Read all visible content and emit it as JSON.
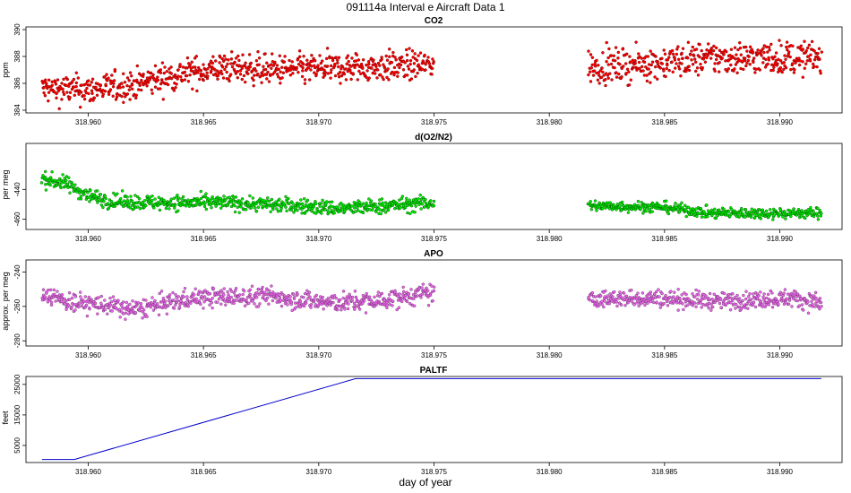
{
  "figure": {
    "title": "091114a   Interval e Aircraft Data 1",
    "xlabel": "day of year"
  },
  "chart_data": [
    {
      "type": "scatter",
      "title": "CO2",
      "ylabel": "ppm",
      "color": "#ff0000",
      "edge_color": "#7a0000",
      "xlim": [
        318.9573,
        318.9927
      ],
      "ylim": [
        383.8,
        390.2
      ],
      "yticks": [
        384,
        386,
        388,
        390
      ],
      "xticks": [
        318.96,
        318.965,
        318.97,
        318.975,
        318.98,
        318.985,
        318.99
      ],
      "xtick_labels": [
        "318.960",
        "318.965",
        "318.970",
        "318.975",
        "318.980",
        "318.985",
        "318.990"
      ],
      "segments": [
        {
          "x_start": 318.958,
          "x_end": 318.975,
          "trend_x": [
            318.958,
            318.96,
            318.962,
            318.964,
            318.966,
            318.968,
            318.97,
            318.972,
            318.975
          ],
          "trend_y": [
            385.6,
            385.5,
            385.9,
            386.7,
            387.2,
            387.0,
            387.1,
            387.2,
            387.4
          ],
          "noise": 0.55
        },
        {
          "x_start": 318.9817,
          "x_end": 318.9918,
          "trend_x": [
            318.9817,
            318.984,
            318.987,
            318.9918
          ],
          "trend_y": [
            387.2,
            387.4,
            387.9,
            387.9
          ],
          "noise": 0.6
        }
      ]
    },
    {
      "type": "scatter",
      "title": "d(O2/N2)",
      "ylabel": "per meg",
      "color": "#00ee00",
      "edge_color": "#005500",
      "xlim": [
        318.9573,
        318.9927
      ],
      "ylim": [
        -467,
        -409
      ],
      "yticks": [
        -440,
        -460
      ],
      "ytick_labels": [
        "-440",
        "-460"
      ],
      "xticks": [
        318.96,
        318.965,
        318.97,
        318.975,
        318.98,
        318.985,
        318.99
      ],
      "xtick_labels": [
        "318.960",
        "318.965",
        "318.970",
        "318.975",
        "318.980",
        "318.985",
        "318.990"
      ],
      "segments": [
        {
          "x_start": 318.958,
          "x_end": 318.975,
          "trend_x": [
            318.958,
            318.959,
            318.96,
            318.961,
            318.963,
            318.966,
            318.969,
            318.971,
            318.975
          ],
          "trend_y": [
            -433,
            -436,
            -444,
            -448,
            -449,
            -449,
            -451,
            -453,
            -449
          ],
          "noise": 2.5
        },
        {
          "x_start": 318.9817,
          "x_end": 318.9918,
          "trend_x": [
            318.9817,
            318.985,
            318.987,
            318.9918
          ],
          "trend_y": [
            -451,
            -452,
            -456,
            -456
          ],
          "noise": 1.8
        }
      ]
    },
    {
      "type": "scatter",
      "title": "APO",
      "ylabel": "approx. per meg",
      "color": "#ee66ee",
      "edge_color": "#663366",
      "xlim": [
        318.9573,
        318.9927
      ],
      "ylim": [
        -283,
        -233
      ],
      "yticks": [
        -240,
        -260,
        -280
      ],
      "ytick_labels": [
        "-240",
        "-260",
        "-280"
      ],
      "xticks": [
        318.96,
        318.965,
        318.97,
        318.975,
        318.98,
        318.985,
        318.99
      ],
      "xtick_labels": [
        "318.960",
        "318.965",
        "318.970",
        "318.975",
        "318.980",
        "318.985",
        "318.990"
      ],
      "segments": [
        {
          "x_start": 318.958,
          "x_end": 318.975,
          "trend_x": [
            318.958,
            318.959,
            318.9605,
            318.962,
            318.9645,
            318.968,
            318.9705,
            318.9725,
            318.975
          ],
          "trend_y": [
            -252,
            -257,
            -259,
            -262,
            -255,
            -254,
            -258,
            -257,
            -252
          ],
          "noise": 2.8
        },
        {
          "x_start": 318.9817,
          "x_end": 318.9918,
          "trend_x": [
            318.9817,
            318.9845,
            318.9875,
            318.9905,
            318.9918
          ],
          "trend_y": [
            -256,
            -255,
            -257,
            -255,
            -258
          ],
          "noise": 2.5
        }
      ]
    },
    {
      "type": "line",
      "title": "PALTF",
      "ylabel": "feet",
      "color": "#0000cc",
      "xlim": [
        318.9573,
        318.9927
      ],
      "ylim": [
        -600,
        27600
      ],
      "yticks": [
        5000,
        15000,
        25000
      ],
      "ytick_labels": [
        "5000",
        "15000",
        "25000"
      ],
      "xticks": [
        318.96,
        318.965,
        318.97,
        318.975,
        318.98,
        318.985,
        318.99
      ],
      "xtick_labels": [
        "318.960",
        "318.965",
        "318.970",
        "318.975",
        "318.980",
        "318.985",
        "318.990"
      ],
      "x": [
        318.958,
        318.9594,
        318.9716,
        318.9918
      ],
      "y": [
        400,
        400,
        26900,
        26900
      ]
    }
  ]
}
